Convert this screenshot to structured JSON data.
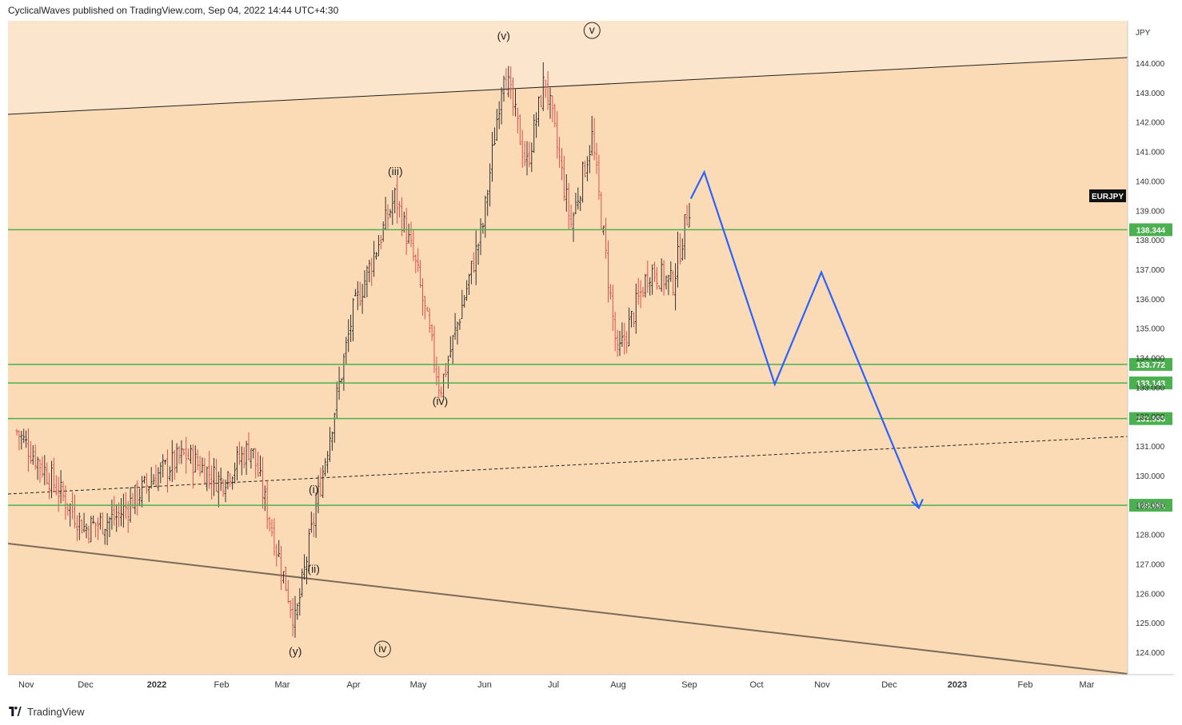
{
  "header": {
    "published_line": "CyclicalWaves published on TradingView.com, Sep 04, 2022 14:44 UTC+4:30"
  },
  "footer": {
    "brand": "TradingView",
    "logo_icon": "tradingview-logo-icon"
  },
  "colors": {
    "channel_upper_fill": "#fbe5cc",
    "channel_fill": "#fbdbb5",
    "support_line": "#4caf50",
    "projection": "#2962ff",
    "bar_down": "#e0504e",
    "bar_up": "#333333"
  },
  "chart_data": {
    "type": "ohlc",
    "symbol": "EURJPY",
    "currency_label": "JPY",
    "x_axis_labels": [
      "Nov",
      "Dec",
      "2022",
      "Feb",
      "Mar",
      "Apr",
      "May",
      "Jun",
      "Jul",
      "Aug",
      "Sep",
      "Oct",
      "Nov",
      "Dec",
      "2023",
      "Feb",
      "Mar"
    ],
    "y_tick_labels": [
      "124.000",
      "125.000",
      "126.000",
      "127.000",
      "128.000",
      "129.000",
      "130.000",
      "131.000",
      "132.000",
      "133.000",
      "134.000",
      "135.000",
      "136.000",
      "137.000",
      "138.000",
      "139.000",
      "140.000",
      "141.000",
      "142.000",
      "143.000",
      "144.000"
    ],
    "ylim": [
      123.3,
      145.5
    ],
    "approx_weekly_closes": [
      {
        "date": "2021-11-01",
        "close": 131.5
      },
      {
        "date": "2021-11-15",
        "close": 130.0
      },
      {
        "date": "2021-12-01",
        "close": 128.2
      },
      {
        "date": "2021-12-15",
        "close": 128.6
      },
      {
        "date": "2022-01-01",
        "close": 130.0
      },
      {
        "date": "2022-01-15",
        "close": 130.7
      },
      {
        "date": "2022-02-01",
        "close": 129.8
      },
      {
        "date": "2022-02-15",
        "close": 131.0
      },
      {
        "date": "2022-03-07",
        "close": 125.0
      },
      {
        "date": "2022-03-15",
        "close": 128.5
      },
      {
        "date": "2022-04-01",
        "close": 135.5
      },
      {
        "date": "2022-04-21",
        "close": 139.5
      },
      {
        "date": "2022-05-01",
        "close": 137.0
      },
      {
        "date": "2022-05-12",
        "close": 132.9
      },
      {
        "date": "2022-06-01",
        "close": 138.5
      },
      {
        "date": "2022-06-10",
        "close": 143.9
      },
      {
        "date": "2022-06-20",
        "close": 140.5
      },
      {
        "date": "2022-06-28",
        "close": 143.5
      },
      {
        "date": "2022-07-10",
        "close": 138.5
      },
      {
        "date": "2022-07-20",
        "close": 141.5
      },
      {
        "date": "2022-08-01",
        "close": 134.0
      },
      {
        "date": "2022-08-15",
        "close": 137.0
      },
      {
        "date": "2022-08-25",
        "close": 136.5
      },
      {
        "date": "2022-09-02",
        "close": 139.4
      }
    ],
    "horizontal_levels": [
      {
        "label": "138.344",
        "value": 138.344
      },
      {
        "label": "133.772",
        "value": 133.772
      },
      {
        "label": "133.143",
        "value": 133.143
      },
      {
        "label": "131.933",
        "value": 131.933
      },
      {
        "label": "128.991",
        "value": 128.991
      }
    ],
    "projection_path": [
      {
        "date": "2022-09-02",
        "price": 139.4
      },
      {
        "date": "2022-09-08",
        "price": 140.3
      },
      {
        "date": "2022-10-10",
        "price": 133.1
      },
      {
        "date": "2022-11-01",
        "price": 136.9
      },
      {
        "date": "2022-12-15",
        "price": 128.9
      }
    ],
    "wave_labels": [
      {
        "text": "(i)",
        "date": "2022-03-15",
        "price": 129.4
      },
      {
        "text": "(ii)",
        "date": "2022-03-15",
        "price": 126.7
      },
      {
        "text": "(iii)",
        "date": "2022-04-21",
        "price": 140.2
      },
      {
        "text": "(iv)",
        "date": "2022-05-12",
        "price": 132.4
      },
      {
        "text": "(v)",
        "date": "2022-06-10",
        "price": 144.8
      },
      {
        "text": "(y)",
        "date": "2022-03-07",
        "price": 123.9
      },
      {
        "text": "iv",
        "circled": true,
        "date": "2022-04-15",
        "price": 124.0
      },
      {
        "text": "v",
        "circled": true,
        "date": "2022-07-20",
        "price": 145.0
      }
    ],
    "grid": false,
    "legend": "symbol tag on right price scale"
  }
}
